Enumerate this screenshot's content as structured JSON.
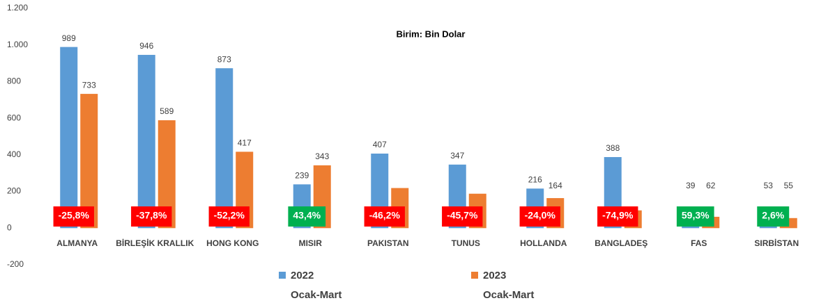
{
  "chart_data": {
    "type": "bar",
    "subtitle": "Birim: Bin Dolar",
    "categories": [
      "ALMANYA",
      "BİRLEŞİK KRALLIK",
      "HONG KONG",
      "MISIR",
      "PAKISTAN",
      "TUNUS",
      "HOLLANDA",
      "BANGLADEŞ",
      "FAS",
      "SIRBİSTAN"
    ],
    "series": [
      {
        "name": "2022",
        "period": "Ocak-Mart",
        "color": "#5b9bd5",
        "values": [
          989,
          946,
          873,
          239,
          407,
          347,
          216,
          388,
          39,
          53
        ]
      },
      {
        "name": "2023",
        "period": "Ocak-Mart",
        "color": "#ed7d31",
        "values": [
          733,
          589,
          417,
          343,
          219,
          188,
          164,
          97,
          62,
          55
        ],
        "value_labels": [
          "733",
          "589",
          "417",
          "343",
          null,
          null,
          "164",
          null,
          "62",
          "55"
        ]
      }
    ],
    "annotations": [
      {
        "label": "-25,8%",
        "color": "#ff0000"
      },
      {
        "label": "-37,8%",
        "color": "#ff0000"
      },
      {
        "label": "-52,2%",
        "color": "#ff0000"
      },
      {
        "label": "43,4%",
        "color": "#00b050"
      },
      {
        "label": "-46,2%",
        "color": "#ff0000"
      },
      {
        "label": "-45,7%",
        "color": "#ff0000"
      },
      {
        "label": "-24,0%",
        "color": "#ff0000"
      },
      {
        "label": "-74,9%",
        "color": "#ff0000"
      },
      {
        "label": "59,3%",
        "color": "#00b050"
      },
      {
        "label": "2,6%",
        "color": "#00b050"
      }
    ],
    "ylim": [
      -200,
      1200
    ],
    "yticks": [
      -200,
      0,
      200,
      400,
      600,
      800,
      {
        "value": 1000,
        "label": "1.000"
      },
      {
        "value": 1200,
        "label": "1.200"
      }
    ],
    "grid": false
  }
}
